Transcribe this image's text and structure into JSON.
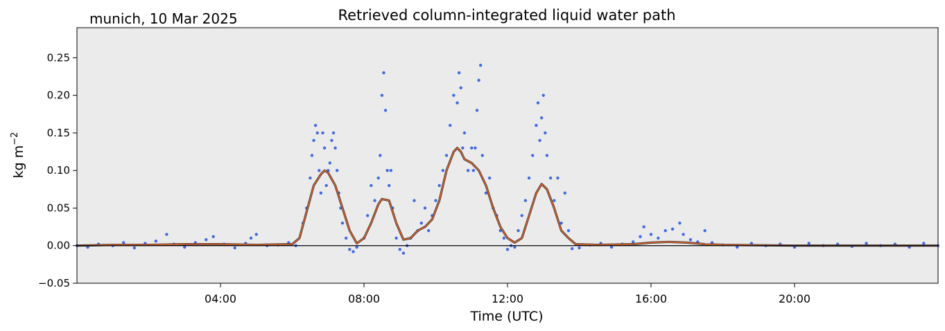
{
  "header": {
    "site_date": "munich, 10 Mar 2025"
  },
  "chart_data": {
    "type": "scatter",
    "title": "Retrieved column-integrated liquid water path",
    "xlabel": "Time (UTC)",
    "ylabel_main": "kg m",
    "ylabel_exp": "−2",
    "xlim_hours": [
      0,
      24
    ],
    "ylim": [
      -0.05,
      0.29
    ],
    "x_ticks": [
      {
        "hour": 4,
        "label": "04:00"
      },
      {
        "hour": 8,
        "label": "08:00"
      },
      {
        "hour": 12,
        "label": "12:00"
      },
      {
        "hour": 16,
        "label": "16:00"
      },
      {
        "hour": 20,
        "label": "20:00"
      }
    ],
    "y_ticks": [
      {
        "value": -0.05,
        "label": "−0.05"
      },
      {
        "value": 0.0,
        "label": "0.00"
      },
      {
        "value": 0.05,
        "label": "0.05"
      },
      {
        "value": 0.1,
        "label": "0.10"
      },
      {
        "value": 0.15,
        "label": "0.15"
      },
      {
        "value": 0.2,
        "label": "0.20"
      },
      {
        "value": 0.25,
        "label": "0.25"
      }
    ],
    "background_color": "#ebebeb",
    "zero_line": true,
    "series": [
      {
        "style": "scatter",
        "color": "#4169e1",
        "points": [
          [
            0.0,
            0.0
          ],
          [
            0.3,
            -0.002
          ],
          [
            0.6,
            0.002
          ],
          [
            1.0,
            0.0
          ],
          [
            1.3,
            0.004
          ],
          [
            1.6,
            -0.003
          ],
          [
            1.9,
            0.003
          ],
          [
            2.2,
            0.006
          ],
          [
            2.5,
            0.015
          ],
          [
            2.7,
            0.002
          ],
          [
            3.0,
            -0.002
          ],
          [
            3.3,
            0.004
          ],
          [
            3.6,
            0.008
          ],
          [
            3.8,
            0.012
          ],
          [
            4.1,
            0.002
          ],
          [
            4.4,
            -0.003
          ],
          [
            4.7,
            0.003
          ],
          [
            4.85,
            0.01
          ],
          [
            5.0,
            0.015
          ],
          [
            5.3,
            0.0
          ],
          [
            5.6,
            0.001
          ],
          [
            5.9,
            0.004
          ],
          [
            6.1,
            0.0
          ],
          [
            6.3,
            0.03
          ],
          [
            6.4,
            0.05
          ],
          [
            6.5,
            0.09
          ],
          [
            6.55,
            0.12
          ],
          [
            6.6,
            0.14
          ],
          [
            6.65,
            0.16
          ],
          [
            6.7,
            0.15
          ],
          [
            6.75,
            0.1
          ],
          [
            6.8,
            0.07
          ],
          [
            6.85,
            0.15
          ],
          [
            6.9,
            0.13
          ],
          [
            6.95,
            0.08
          ],
          [
            7.0,
            0.1
          ],
          [
            7.05,
            0.11
          ],
          [
            7.1,
            0.14
          ],
          [
            7.15,
            0.15
          ],
          [
            7.2,
            0.13
          ],
          [
            7.25,
            0.1
          ],
          [
            7.3,
            0.07
          ],
          [
            7.35,
            0.05
          ],
          [
            7.4,
            0.03
          ],
          [
            7.5,
            0.01
          ],
          [
            7.6,
            -0.005
          ],
          [
            7.7,
            -0.008
          ],
          [
            7.8,
            -0.002
          ],
          [
            8.0,
            0.01
          ],
          [
            8.1,
            0.04
          ],
          [
            8.2,
            0.08
          ],
          [
            8.3,
            0.06
          ],
          [
            8.4,
            0.09
          ],
          [
            8.45,
            0.12
          ],
          [
            8.5,
            0.2
          ],
          [
            8.55,
            0.23
          ],
          [
            8.6,
            0.18
          ],
          [
            8.65,
            0.1
          ],
          [
            8.7,
            0.08
          ],
          [
            8.75,
            0.1
          ],
          [
            8.8,
            0.05
          ],
          [
            8.9,
            0.01
          ],
          [
            9.0,
            -0.005
          ],
          [
            9.1,
            -0.01
          ],
          [
            9.2,
            0.0
          ],
          [
            9.3,
            0.01
          ],
          [
            9.4,
            0.06
          ],
          [
            9.5,
            0.02
          ],
          [
            9.6,
            0.03
          ],
          [
            9.7,
            0.05
          ],
          [
            9.8,
            0.02
          ],
          [
            9.9,
            0.04
          ],
          [
            10.0,
            0.06
          ],
          [
            10.1,
            0.08
          ],
          [
            10.2,
            0.1
          ],
          [
            10.3,
            0.12
          ],
          [
            10.4,
            0.16
          ],
          [
            10.5,
            0.2
          ],
          [
            10.6,
            0.19
          ],
          [
            10.65,
            0.23
          ],
          [
            10.7,
            0.21
          ],
          [
            10.75,
            0.13
          ],
          [
            10.8,
            0.15
          ],
          [
            10.9,
            0.1
          ],
          [
            11.0,
            0.13
          ],
          [
            11.05,
            0.1
          ],
          [
            11.1,
            0.13
          ],
          [
            11.15,
            0.18
          ],
          [
            11.2,
            0.22
          ],
          [
            11.25,
            0.24
          ],
          [
            11.3,
            0.12
          ],
          [
            11.4,
            0.07
          ],
          [
            11.5,
            0.09
          ],
          [
            11.6,
            0.05
          ],
          [
            11.7,
            0.04
          ],
          [
            11.8,
            0.02
          ],
          [
            11.9,
            0.01
          ],
          [
            12.0,
            -0.005
          ],
          [
            12.1,
            0.0
          ],
          [
            12.2,
            -0.002
          ],
          [
            12.3,
            0.02
          ],
          [
            12.4,
            0.04
          ],
          [
            12.5,
            0.06
          ],
          [
            12.6,
            0.09
          ],
          [
            12.7,
            0.12
          ],
          [
            12.8,
            0.16
          ],
          [
            12.85,
            0.19
          ],
          [
            12.9,
            0.14
          ],
          [
            12.95,
            0.17
          ],
          [
            13.0,
            0.2
          ],
          [
            13.05,
            0.15
          ],
          [
            13.1,
            0.12
          ],
          [
            13.2,
            0.09
          ],
          [
            13.3,
            0.06
          ],
          [
            13.4,
            0.09
          ],
          [
            13.5,
            0.03
          ],
          [
            13.6,
            0.07
          ],
          [
            13.7,
            0.02
          ],
          [
            13.8,
            -0.004
          ],
          [
            14.0,
            -0.003
          ],
          [
            14.3,
            0.001
          ],
          [
            14.6,
            0.003
          ],
          [
            14.9,
            -0.002
          ],
          [
            15.2,
            0.002
          ],
          [
            15.5,
            0.005
          ],
          [
            15.7,
            0.012
          ],
          [
            15.8,
            0.025
          ],
          [
            16.0,
            0.015
          ],
          [
            16.2,
            0.01
          ],
          [
            16.4,
            0.02
          ],
          [
            16.6,
            0.022
          ],
          [
            16.8,
            0.03
          ],
          [
            16.9,
            0.015
          ],
          [
            17.1,
            0.008
          ],
          [
            17.3,
            0.005
          ],
          [
            17.5,
            0.02
          ],
          [
            17.7,
            0.004
          ],
          [
            18.0,
            0.001
          ],
          [
            18.4,
            -0.002
          ],
          [
            18.8,
            0.003
          ],
          [
            19.2,
            0.0
          ],
          [
            19.6,
            0.002
          ],
          [
            20.0,
            -0.002
          ],
          [
            20.4,
            0.003
          ],
          [
            20.8,
            0.0
          ],
          [
            21.2,
            0.002
          ],
          [
            21.6,
            -0.001
          ],
          [
            22.0,
            0.003
          ],
          [
            22.4,
            0.0
          ],
          [
            22.8,
            0.002
          ],
          [
            23.2,
            -0.002
          ],
          [
            23.6,
            0.003
          ],
          [
            24.0,
            0.0
          ]
        ]
      },
      {
        "style": "line",
        "color": "#e0622a",
        "points": [
          [
            0.0,
            0.0
          ],
          [
            1.0,
            0.001
          ],
          [
            2.0,
            0.001
          ],
          [
            3.0,
            0.002
          ],
          [
            4.0,
            0.002
          ],
          [
            5.0,
            0.001
          ],
          [
            6.0,
            0.002
          ],
          [
            6.2,
            0.01
          ],
          [
            6.4,
            0.045
          ],
          [
            6.6,
            0.08
          ],
          [
            6.8,
            0.095
          ],
          [
            6.9,
            0.1
          ],
          [
            7.0,
            0.097
          ],
          [
            7.2,
            0.08
          ],
          [
            7.4,
            0.05
          ],
          [
            7.6,
            0.02
          ],
          [
            7.8,
            0.003
          ],
          [
            8.0,
            0.01
          ],
          [
            8.2,
            0.03
          ],
          [
            8.4,
            0.055
          ],
          [
            8.5,
            0.062
          ],
          [
            8.7,
            0.06
          ],
          [
            8.9,
            0.03
          ],
          [
            9.1,
            0.008
          ],
          [
            9.3,
            0.01
          ],
          [
            9.5,
            0.02
          ],
          [
            9.7,
            0.025
          ],
          [
            9.9,
            0.035
          ],
          [
            10.1,
            0.06
          ],
          [
            10.3,
            0.1
          ],
          [
            10.5,
            0.125
          ],
          [
            10.6,
            0.13
          ],
          [
            10.7,
            0.125
          ],
          [
            10.8,
            0.115
          ],
          [
            11.0,
            0.11
          ],
          [
            11.2,
            0.1
          ],
          [
            11.4,
            0.08
          ],
          [
            11.6,
            0.05
          ],
          [
            11.8,
            0.025
          ],
          [
            12.0,
            0.01
          ],
          [
            12.2,
            0.004
          ],
          [
            12.4,
            0.01
          ],
          [
            12.6,
            0.04
          ],
          [
            12.8,
            0.07
          ],
          [
            12.95,
            0.082
          ],
          [
            13.1,
            0.075
          ],
          [
            13.3,
            0.05
          ],
          [
            13.5,
            0.02
          ],
          [
            13.7,
            0.01
          ],
          [
            13.9,
            0.002
          ],
          [
            14.5,
            0.001
          ],
          [
            15.5,
            0.002
          ],
          [
            16.0,
            0.004
          ],
          [
            16.5,
            0.005
          ],
          [
            17.0,
            0.004
          ],
          [
            17.5,
            0.002
          ],
          [
            18.0,
            0.001
          ],
          [
            20.0,
            0.0
          ],
          [
            24.0,
            0.0
          ]
        ]
      }
    ]
  }
}
